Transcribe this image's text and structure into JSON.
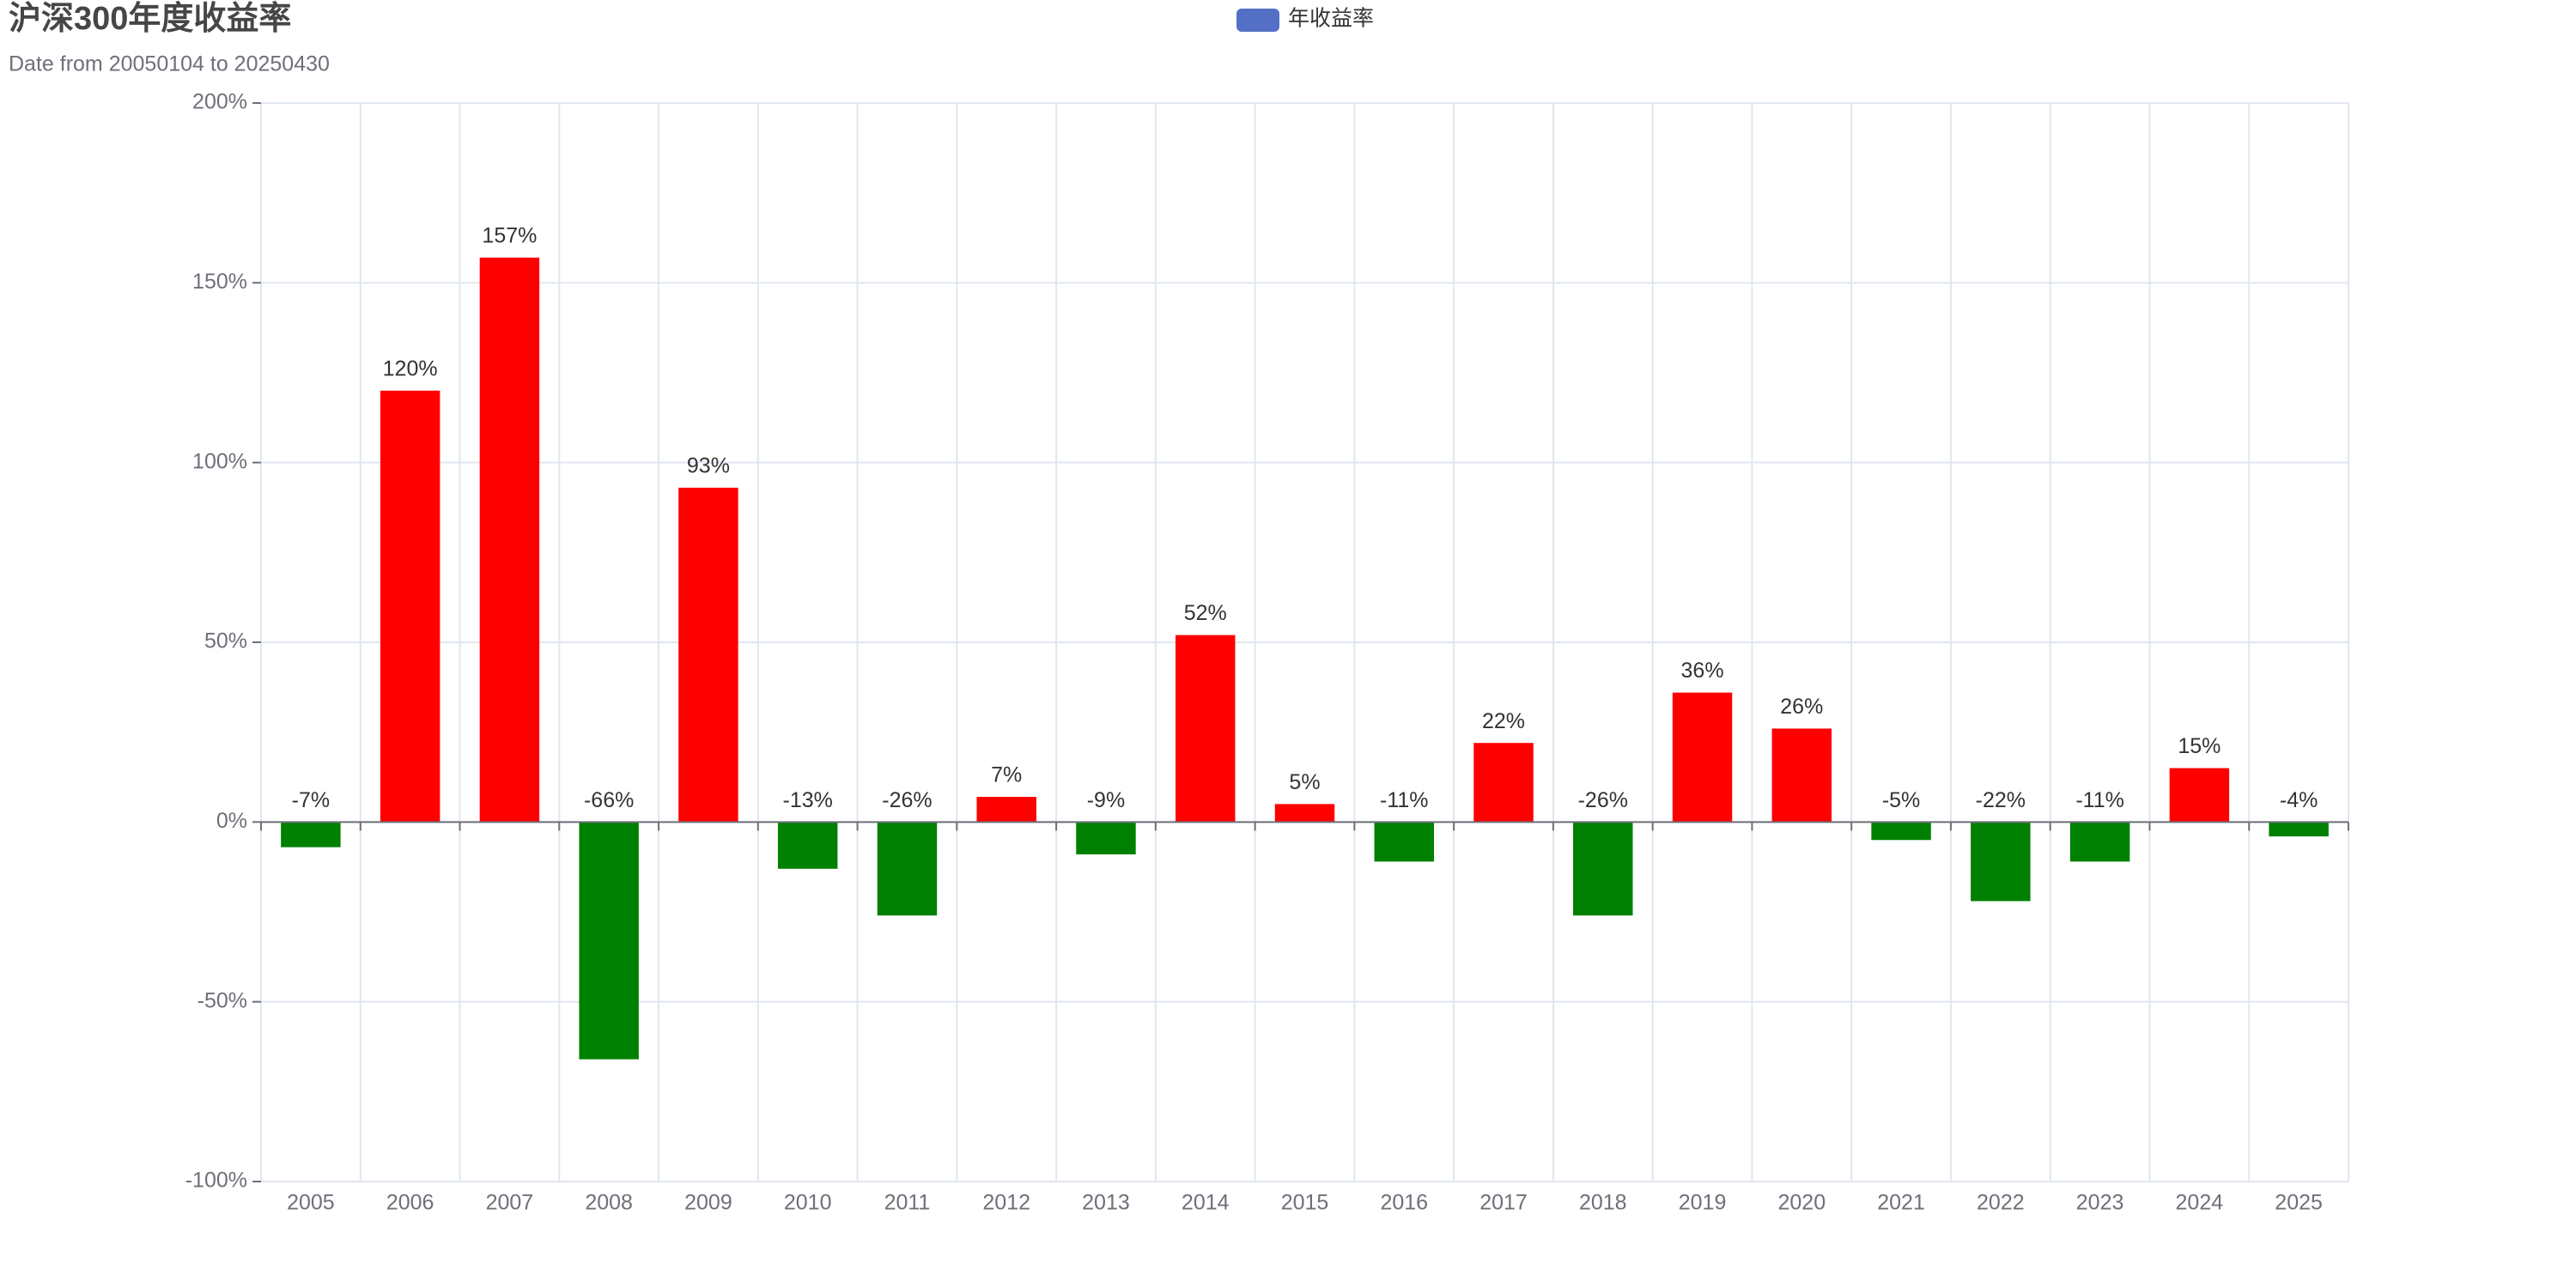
{
  "chart_data": {
    "type": "bar",
    "title": "沪深300年度收益率",
    "subtitle": "Date from 20050104 to 20250430",
    "categories": [
      "2005",
      "2006",
      "2007",
      "2008",
      "2009",
      "2010",
      "2011",
      "2012",
      "2013",
      "2014",
      "2015",
      "2016",
      "2017",
      "2018",
      "2019",
      "2020",
      "2021",
      "2022",
      "2023",
      "2024",
      "2025"
    ],
    "series": [
      {
        "name": "年收益率",
        "color": "#5470c6",
        "values": [
          -7,
          120,
          157,
          -66,
          93,
          -13,
          -26,
          7,
          -9,
          52,
          5,
          -11,
          22,
          -26,
          36,
          26,
          -5,
          -22,
          -11,
          15,
          -4
        ],
        "value_labels": [
          "-7%",
          "120%",
          "157%",
          "-66%",
          "93%",
          "-13%",
          "-26%",
          "7%",
          "-9%",
          "52%",
          "5%",
          "-11%",
          "22%",
          "-26%",
          "36%",
          "26%",
          "-5%",
          "-22%",
          "-11%",
          "15%",
          "-4%"
        ]
      }
    ],
    "positive_color": "#ff0000",
    "negative_color": "#008000",
    "ylim": [
      -100,
      200
    ],
    "yticks": [
      {
        "value": -100,
        "label": "-100%"
      },
      {
        "value": -50,
        "label": "-50%"
      },
      {
        "value": 0,
        "label": "0%"
      },
      {
        "value": 50,
        "label": "50%"
      },
      {
        "value": 100,
        "label": "100%"
      },
      {
        "value": 150,
        "label": "150%"
      },
      {
        "value": 200,
        "label": "200%"
      }
    ],
    "grid": true,
    "legend_position": "top"
  }
}
